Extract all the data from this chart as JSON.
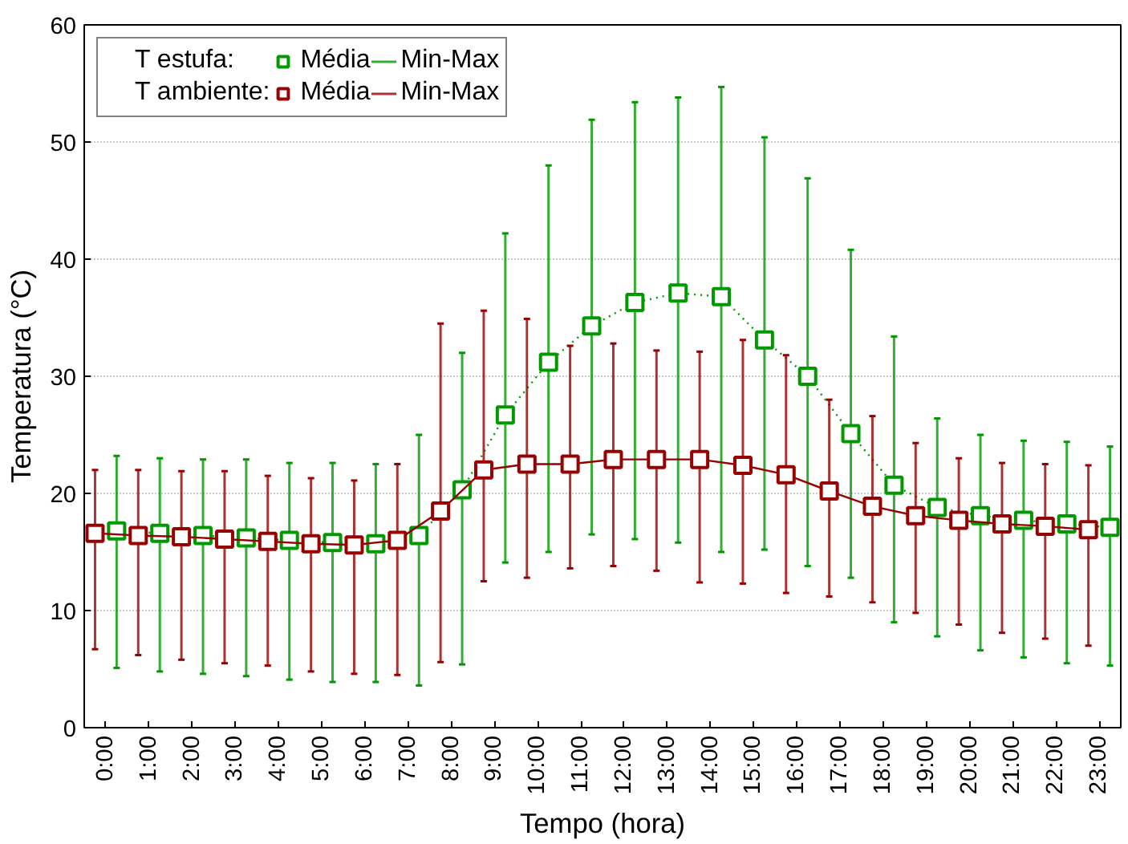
{
  "chart_data": {
    "type": "line",
    "xlabel": "Tempo (hora)",
    "ylabel": "Temperatura (°C)",
    "categories": [
      "0:00",
      "1:00",
      "2:00",
      "3:00",
      "4:00",
      "5:00",
      "6:00",
      "7:00",
      "8:00",
      "9:00",
      "10:00",
      "11:00",
      "12:00",
      "13:00",
      "14:00",
      "15:00",
      "16:00",
      "17:00",
      "18:00",
      "19:00",
      "20:00",
      "21:00",
      "22:00",
      "23:00"
    ],
    "series": [
      {
        "name": "T estufa:",
        "color": "#009900",
        "line_style": "dotted",
        "values": [
          16.8,
          16.6,
          16.4,
          16.2,
          16.0,
          15.8,
          15.7,
          16.4,
          20.3,
          26.7,
          31.2,
          34.3,
          36.3,
          37.1,
          36.8,
          33.1,
          30.0,
          25.1,
          20.7,
          18.8,
          18.1,
          17.7,
          17.4,
          17.1
        ],
        "errors": [
          [
            5.1,
            23.2
          ],
          [
            4.8,
            23.0
          ],
          [
            4.6,
            22.9
          ],
          [
            4.4,
            22.9
          ],
          [
            4.1,
            22.6
          ],
          [
            3.9,
            22.6
          ],
          [
            3.9,
            22.5
          ],
          [
            3.6,
            25.0
          ],
          [
            5.4,
            32.0
          ],
          [
            14.1,
            42.2
          ],
          [
            15.0,
            48.0
          ],
          [
            16.5,
            51.9
          ],
          [
            16.1,
            53.4
          ],
          [
            15.8,
            53.8
          ],
          [
            15.0,
            54.7
          ],
          [
            15.2,
            50.4
          ],
          [
            13.8,
            46.9
          ],
          [
            12.8,
            40.8
          ],
          [
            9.0,
            33.4
          ],
          [
            7.8,
            26.4
          ],
          [
            6.6,
            25.0
          ],
          [
            6.0,
            24.5
          ],
          [
            5.5,
            24.4
          ],
          [
            5.3,
            24.0
          ]
        ]
      },
      {
        "name": "T ambiente:",
        "color": "#990000",
        "line_style": "solid",
        "values": [
          16.6,
          16.4,
          16.3,
          16.1,
          15.9,
          15.7,
          15.6,
          16.0,
          18.5,
          22.0,
          22.5,
          22.5,
          22.9,
          22.9,
          22.9,
          22.4,
          21.6,
          20.2,
          18.9,
          18.1,
          17.7,
          17.4,
          17.2,
          16.9
        ],
        "errors": [
          [
            6.7,
            22.0
          ],
          [
            6.2,
            22.0
          ],
          [
            5.8,
            21.9
          ],
          [
            5.5,
            21.9
          ],
          [
            5.3,
            21.5
          ],
          [
            4.8,
            21.3
          ],
          [
            4.6,
            21.1
          ],
          [
            4.5,
            22.5
          ],
          [
            5.6,
            34.5
          ],
          [
            12.5,
            35.6
          ],
          [
            12.8,
            34.9
          ],
          [
            13.6,
            32.6
          ],
          [
            13.8,
            32.8
          ],
          [
            13.4,
            32.2
          ],
          [
            12.4,
            32.1
          ],
          [
            12.3,
            33.1
          ],
          [
            11.5,
            31.8
          ],
          [
            11.2,
            28.0
          ],
          [
            10.7,
            26.6
          ],
          [
            9.8,
            24.3
          ],
          [
            8.8,
            23.0
          ],
          [
            8.1,
            22.6
          ],
          [
            7.6,
            22.5
          ],
          [
            7.0,
            22.4
          ]
        ]
      }
    ],
    "annotations": [
      "Média",
      "Min-Max",
      "Média",
      "Min-Max"
    ],
    "ylim": [
      0,
      60
    ],
    "yticks": [
      0,
      10,
      20,
      30,
      40,
      50,
      60
    ],
    "grid": "y",
    "marker": "square",
    "legend": "top left"
  }
}
